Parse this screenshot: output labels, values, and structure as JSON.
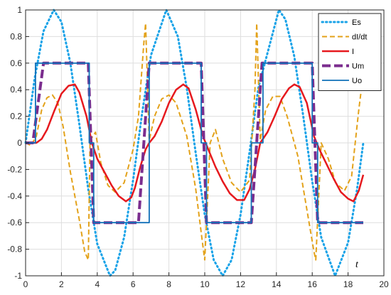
{
  "chart_data": {
    "type": "line",
    "xlabel": "t",
    "ylabel": "",
    "xlim": [
      0,
      20
    ],
    "ylim": [
      -1,
      1
    ],
    "grid": true,
    "legend": "top-right",
    "xticks": [
      "0",
      "2",
      "4",
      "6",
      "8",
      "10",
      "12",
      "14",
      "16",
      "18",
      "20"
    ],
    "yticks": [
      "-1",
      "-0.8",
      "-0.6",
      "-0.4",
      "-0.2",
      "0",
      "0.2",
      "0.4",
      "0.6",
      "0.8",
      "1"
    ],
    "series": [
      {
        "name": "Es",
        "color": "#1aa3e8",
        "style": "dotted",
        "x": [
          0,
          0.5,
          1,
          1.571,
          2,
          2.5,
          3,
          3.5,
          4,
          4.712,
          5,
          5.5,
          6,
          6.5,
          7,
          7.854,
          8.5,
          9,
          9.5,
          10,
          10.5,
          11,
          11.5,
          12,
          12.5,
          13,
          14.137,
          14.5,
          15,
          15.5,
          16,
          16.5,
          17.279,
          18,
          18.5,
          18.85
        ],
        "y": [
          0,
          0.48,
          0.84,
          1.0,
          0.91,
          0.6,
          0.14,
          -0.35,
          -0.76,
          -1.0,
          -0.96,
          -0.71,
          -0.28,
          0.22,
          0.66,
          1.0,
          0.8,
          0.41,
          -0.08,
          -0.54,
          -0.88,
          -1.0,
          -0.88,
          -0.54,
          -0.07,
          0.42,
          1.0,
          0.93,
          0.65,
          0.2,
          -0.29,
          -0.71,
          -1.0,
          -0.75,
          -0.35,
          0.0
        ]
      },
      {
        "name": "dI/dt",
        "color": "#e3a21a",
        "style": "dashed",
        "x": [
          0,
          0.3,
          0.6,
          0.9,
          1.2,
          1.5,
          1.8,
          2.1,
          2.5,
          3.0,
          3.3,
          3.5,
          3.6,
          3.9,
          4.2,
          4.6,
          5.0,
          5.5,
          6.0,
          6.3,
          6.6,
          6.7,
          6.9,
          7.2,
          7.6,
          8.0,
          8.4,
          9.0,
          9.5,
          9.9,
          10.0,
          10.3,
          10.6,
          11.0,
          11.5,
          12.0,
          12.5,
          12.8,
          12.9,
          13.1,
          13.4,
          13.8,
          14.2,
          14.6,
          15.2,
          15.7,
          16.1,
          16.2,
          16.5,
          16.9,
          17.3,
          17.8,
          18.2,
          18.6,
          18.85
        ],
        "y": [
          0,
          -0.02,
          0.05,
          0.25,
          0.34,
          0.36,
          0.3,
          0.12,
          -0.22,
          -0.58,
          -0.82,
          -0.88,
          0.02,
          0.08,
          -0.15,
          -0.32,
          -0.37,
          -0.3,
          -0.05,
          0.2,
          0.75,
          0.9,
          0.02,
          0.2,
          0.33,
          0.36,
          0.3,
          0.05,
          -0.35,
          -0.78,
          -0.88,
          0.0,
          0.1,
          -0.12,
          -0.3,
          -0.37,
          -0.28,
          0.4,
          0.9,
          0.02,
          0.25,
          0.35,
          0.35,
          0.2,
          -0.1,
          -0.5,
          -0.82,
          -0.88,
          0.0,
          -0.12,
          -0.3,
          -0.36,
          -0.25,
          0.25,
          0.52
        ]
      },
      {
        "name": "I",
        "color": "#e6191e",
        "style": "solid",
        "x": [
          0,
          0.6,
          0.9,
          1.2,
          1.6,
          2.0,
          2.4,
          2.75,
          3.0,
          3.4,
          3.7,
          4.0,
          4.4,
          4.8,
          5.2,
          5.6,
          5.9,
          6.1,
          6.4,
          6.7,
          6.9,
          7.2,
          7.6,
          8.0,
          8.4,
          8.8,
          9.1,
          9.5,
          9.9,
          10.2,
          10.6,
          11.0,
          11.4,
          11.8,
          12.2,
          12.5,
          12.8,
          13.1,
          13.5,
          13.9,
          14.3,
          14.7,
          15.0,
          15.3,
          15.7,
          16.1,
          16.4,
          16.8,
          17.2,
          17.6,
          18.0,
          18.3,
          18.6,
          18.85
        ],
        "y": [
          0,
          0.0,
          0.03,
          0.1,
          0.24,
          0.37,
          0.43,
          0.44,
          0.38,
          0.2,
          0.0,
          -0.12,
          -0.22,
          -0.32,
          -0.4,
          -0.44,
          -0.41,
          -0.34,
          -0.18,
          -0.05,
          0.0,
          0.05,
          0.16,
          0.3,
          0.4,
          0.44,
          0.41,
          0.25,
          0.05,
          -0.05,
          -0.18,
          -0.29,
          -0.38,
          -0.43,
          -0.43,
          -0.35,
          -0.2,
          0.0,
          0.08,
          0.2,
          0.33,
          0.41,
          0.44,
          0.42,
          0.3,
          0.05,
          -0.05,
          -0.16,
          -0.27,
          -0.37,
          -0.42,
          -0.44,
          -0.36,
          -0.24
        ]
      },
      {
        "name": "Um",
        "color": "#7b2d8e",
        "style": "dashed-thick",
        "x": [
          0,
          0.4,
          1.0,
          3.5,
          3.8,
          6.3,
          6.9,
          9.8,
          10.1,
          12.6,
          13.2,
          16.0,
          16.3,
          18.85
        ],
        "y": [
          0,
          0,
          0.6,
          0.6,
          -0.6,
          -0.6,
          0.6,
          0.6,
          -0.6,
          -0.6,
          0.6,
          0.6,
          -0.6,
          -0.6
        ]
      },
      {
        "name": "Uo",
        "color": "#1170b8",
        "style": "solid",
        "x": [
          0,
          0.55,
          0.55,
          2.8,
          2.8,
          3.55,
          3.55,
          3.8,
          3.8,
          6.3,
          6.3,
          6.9,
          6.9,
          9.1,
          9.1,
          9.8,
          9.8,
          10.1,
          10.1,
          12.6,
          12.6,
          13.25,
          13.25,
          15.4,
          15.4,
          16.0,
          16.0,
          16.3,
          16.3,
          18.85
        ],
        "y": [
          0,
          0,
          0.6,
          0.6,
          0.6,
          0.6,
          0,
          0,
          -0.6,
          -0.6,
          -0.6,
          -0.6,
          0.6,
          0.6,
          0.6,
          0.6,
          0,
          0,
          -0.6,
          -0.6,
          0,
          0,
          0.6,
          0.6,
          0.6,
          0.6,
          0,
          0,
          -0.6,
          -0.6
        ]
      }
    ]
  }
}
